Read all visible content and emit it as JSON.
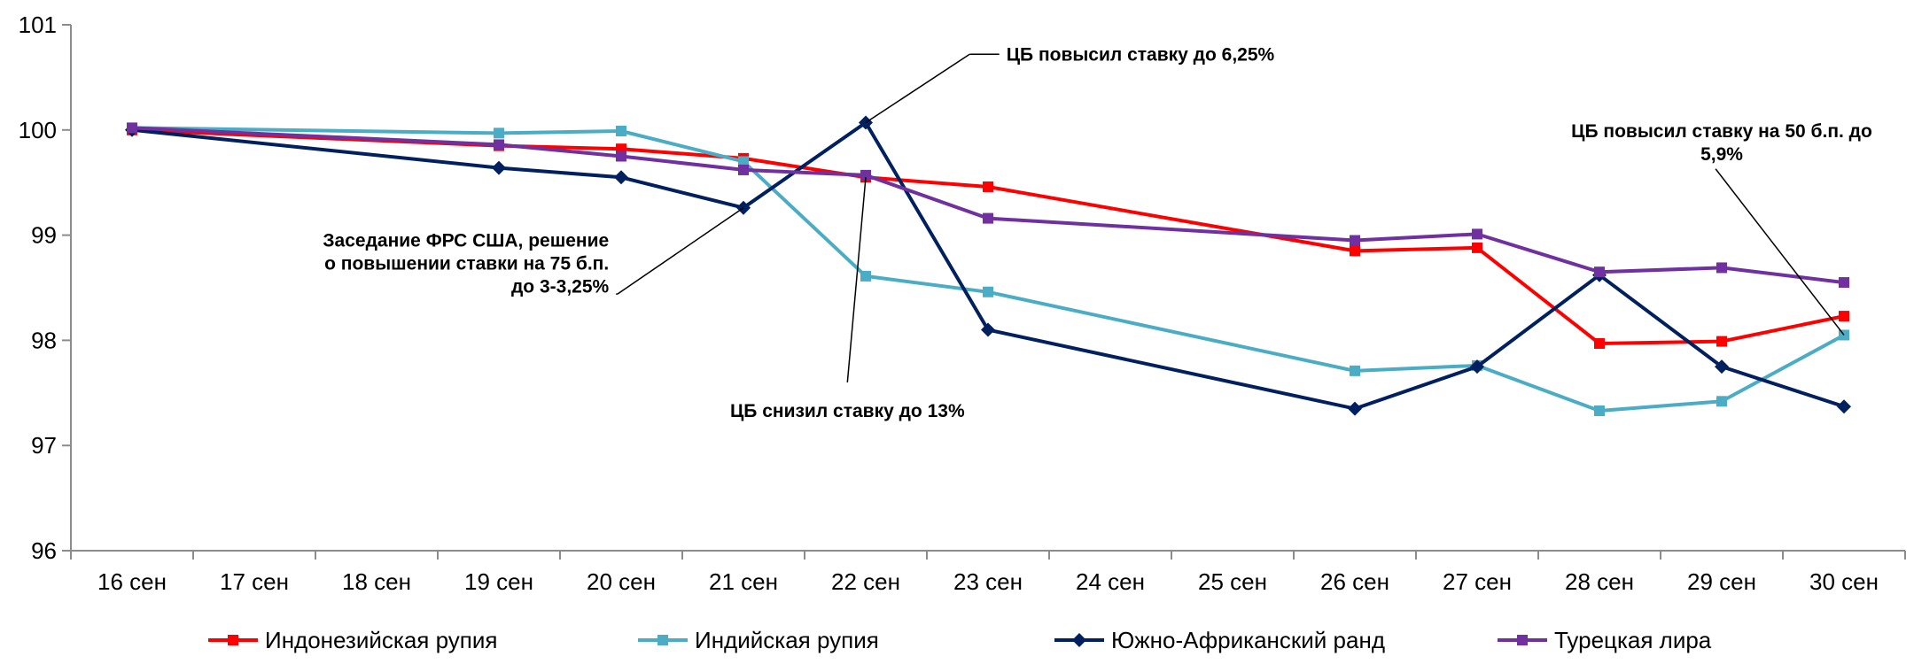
{
  "chart_data": {
    "type": "line",
    "title": "",
    "xlabel": "",
    "ylabel": "",
    "categories": [
      "16 сен",
      "17 сен",
      "18 сен",
      "19 сен",
      "20 сен",
      "21 сен",
      "22 сен",
      "23 сен",
      "24 сен",
      "25 сен",
      "26 сен",
      "27 сен",
      "28 сен",
      "29 сен",
      "30 сен"
    ],
    "ylim": [
      96,
      101
    ],
    "yticks": [
      "96",
      "97",
      "98",
      "99",
      "100",
      "101"
    ],
    "grid": false,
    "legend_position": "bottom",
    "series": [
      {
        "name": "Индонезийская рупия",
        "color": "#FF0000",
        "marker": "square",
        "values": [
          100.0,
          null,
          null,
          99.85,
          99.82,
          99.73,
          99.55,
          99.46,
          null,
          null,
          98.85,
          98.88,
          97.97,
          97.99,
          98.23
        ]
      },
      {
        "name": "Индийская рупия",
        "color": "#4BACC6",
        "marker": "square",
        "values": [
          100.02,
          null,
          null,
          99.97,
          99.99,
          99.7,
          98.61,
          98.46,
          null,
          null,
          97.71,
          97.76,
          97.33,
          97.42,
          98.05
        ]
      },
      {
        "name": "Южно-Африканский ранд",
        "color": "#002060",
        "marker": "diamond",
        "values": [
          100.0,
          null,
          null,
          99.64,
          99.55,
          99.26,
          100.07,
          98.1,
          null,
          null,
          97.35,
          97.75,
          98.62,
          97.75,
          97.37
        ]
      },
      {
        "name": "Турецкая лира",
        "color": "#7030A0",
        "marker": "square",
        "values": [
          100.02,
          null,
          null,
          99.86,
          99.75,
          99.62,
          99.57,
          99.16,
          null,
          null,
          98.95,
          99.01,
          98.65,
          98.69,
          98.55
        ]
      }
    ],
    "annotations": [
      {
        "lines": [
          "ЦБ повысил ставку до 6,25%"
        ],
        "anchor": "left",
        "text_at": {
          "x": 7.15,
          "y": 100.72
        },
        "elbow": {
          "x": 6.85,
          "y": 100.72
        },
        "target": {
          "x": 6.0,
          "y": 100.07
        }
      },
      {
        "lines": [
          "Заседание ФРС США, решение",
          "о повышении ставки на 75 б.п.",
          "до 3-3,25%"
        ],
        "anchor": "end",
        "text_at": {
          "x": 3.9,
          "y": 98.73
        },
        "elbow": {
          "x": 3.97,
          "y": 98.44
        },
        "target": {
          "x": 5.0,
          "y": 99.26
        }
      },
      {
        "lines": [
          "ЦБ снизил ставку до 13%"
        ],
        "anchor": "middle",
        "text_at": {
          "x": 5.85,
          "y": 97.27
        },
        "elbow": {
          "x": 5.85,
          "y": 97.6
        },
        "target": {
          "x": 6.0,
          "y": 99.55
        }
      },
      {
        "lines": [
          "ЦБ повысил ставку на 50 б.п. до",
          "5,9%"
        ],
        "anchor": "middle",
        "text_at": {
          "x": 13.0,
          "y": 99.93
        },
        "elbow": {
          "x": 12.95,
          "y": 99.63
        },
        "target": {
          "x": 14.0,
          "y": 98.05
        }
      }
    ]
  }
}
